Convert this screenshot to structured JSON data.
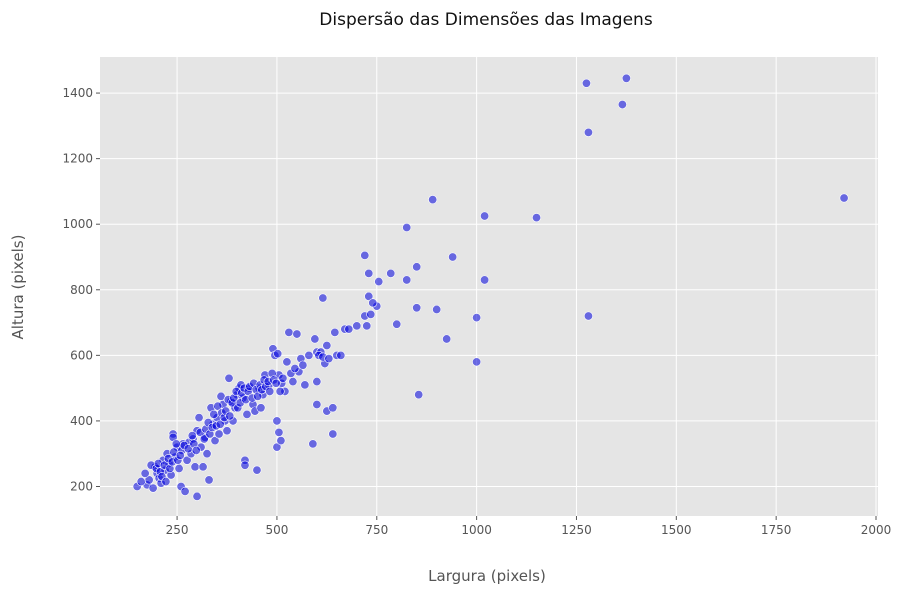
{
  "chart_data": {
    "type": "scatter",
    "title": "Dispersão das Dimensões das Imagens",
    "xlabel": "Largura (pixels)",
    "ylabel": "Altura (pixels)",
    "xlim": [
      57,
      2005
    ],
    "ylim": [
      110,
      1510
    ],
    "xticks": [
      250,
      500,
      750,
      1000,
      1250,
      1500,
      1750,
      2000
    ],
    "yticks": [
      200,
      400,
      600,
      800,
      1000,
      1200,
      1400
    ],
    "grid": true,
    "point_color": "#0000dd",
    "background_color": "#e5e5e5",
    "series": [
      {
        "points": [
          [
            150,
            200
          ],
          [
            175,
            205
          ],
          [
            180,
            220
          ],
          [
            190,
            195
          ],
          [
            195,
            260
          ],
          [
            200,
            240
          ],
          [
            205,
            225
          ],
          [
            210,
            210
          ],
          [
            215,
            280
          ],
          [
            220,
            250
          ],
          [
            225,
            300
          ],
          [
            230,
            270
          ],
          [
            235,
            235
          ],
          [
            240,
            360
          ],
          [
            240,
            350
          ],
          [
            245,
            290
          ],
          [
            250,
            320
          ],
          [
            255,
            255
          ],
          [
            260,
            200
          ],
          [
            262,
            310
          ],
          [
            265,
            330
          ],
          [
            270,
            185
          ],
          [
            275,
            280
          ],
          [
            280,
            335
          ],
          [
            285,
            300
          ],
          [
            290,
            345
          ],
          [
            295,
            260
          ],
          [
            300,
            170
          ],
          [
            300,
            370
          ],
          [
            305,
            410
          ],
          [
            310,
            320
          ],
          [
            315,
            260
          ],
          [
            320,
            350
          ],
          [
            325,
            300
          ],
          [
            330,
            220
          ],
          [
            335,
            440
          ],
          [
            340,
            390
          ],
          [
            345,
            340
          ],
          [
            350,
            410
          ],
          [
            355,
            360
          ],
          [
            360,
            475
          ],
          [
            365,
            450
          ],
          [
            370,
            400
          ],
          [
            375,
            370
          ],
          [
            380,
            530
          ],
          [
            385,
            460
          ],
          [
            390,
            400
          ],
          [
            395,
            440
          ],
          [
            400,
            480
          ],
          [
            405,
            500
          ],
          [
            410,
            510
          ],
          [
            415,
            470
          ],
          [
            420,
            280
          ],
          [
            420,
            265
          ],
          [
            425,
            420
          ],
          [
            430,
            500
          ],
          [
            440,
            450
          ],
          [
            445,
            430
          ],
          [
            450,
            250
          ],
          [
            455,
            500
          ],
          [
            460,
            440
          ],
          [
            465,
            480
          ],
          [
            470,
            540
          ],
          [
            480,
            510
          ],
          [
            490,
            620
          ],
          [
            495,
            600
          ],
          [
            500,
            400
          ],
          [
            500,
            320
          ],
          [
            505,
            540
          ],
          [
            505,
            365
          ],
          [
            510,
            340
          ],
          [
            512,
            515
          ],
          [
            520,
            490
          ],
          [
            525,
            580
          ],
          [
            530,
            670
          ],
          [
            540,
            520
          ],
          [
            550,
            665
          ],
          [
            555,
            550
          ],
          [
            560,
            590
          ],
          [
            570,
            510
          ],
          [
            590,
            330
          ],
          [
            595,
            650
          ],
          [
            600,
            610
          ],
          [
            600,
            520
          ],
          [
            600,
            450
          ],
          [
            610,
            610
          ],
          [
            615,
            775
          ],
          [
            620,
            575
          ],
          [
            625,
            630
          ],
          [
            625,
            430
          ],
          [
            640,
            440
          ],
          [
            640,
            360
          ],
          [
            645,
            670
          ],
          [
            650,
            600
          ],
          [
            670,
            680
          ],
          [
            680,
            680
          ],
          [
            720,
            720
          ],
          [
            720,
            905
          ],
          [
            725,
            690
          ],
          [
            730,
            780
          ],
          [
            730,
            850
          ],
          [
            735,
            725
          ],
          [
            750,
            750
          ],
          [
            755,
            825
          ],
          [
            785,
            850
          ],
          [
            800,
            695
          ],
          [
            825,
            990
          ],
          [
            825,
            830
          ],
          [
            850,
            870
          ],
          [
            850,
            745
          ],
          [
            855,
            480
          ],
          [
            890,
            1075
          ],
          [
            900,
            740
          ],
          [
            925,
            650
          ],
          [
            940,
            900
          ],
          [
            1000,
            715
          ],
          [
            1000,
            580
          ],
          [
            1020,
            1025
          ],
          [
            1020,
            830
          ],
          [
            1150,
            1020
          ],
          [
            1275,
            1430
          ],
          [
            1280,
            1280
          ],
          [
            1280,
            720
          ],
          [
            1365,
            1365
          ],
          [
            1375,
            1445
          ],
          [
            1920,
            1080
          ],
          [
            160,
            215
          ],
          [
            170,
            240
          ],
          [
            185,
            265
          ],
          [
            198,
            255
          ],
          [
            203,
            270
          ],
          [
            208,
            245
          ],
          [
            212,
            230
          ],
          [
            218,
            265
          ],
          [
            222,
            215
          ],
          [
            228,
            285
          ],
          [
            232,
            255
          ],
          [
            238,
            275
          ],
          [
            242,
            305
          ],
          [
            248,
            330
          ],
          [
            252,
            280
          ],
          [
            258,
            295
          ],
          [
            268,
            325
          ],
          [
            278,
            315
          ],
          [
            288,
            355
          ],
          [
            292,
            330
          ],
          [
            298,
            310
          ],
          [
            308,
            365
          ],
          [
            318,
            345
          ],
          [
            322,
            375
          ],
          [
            328,
            395
          ],
          [
            332,
            360
          ],
          [
            338,
            380
          ],
          [
            342,
            420
          ],
          [
            348,
            385
          ],
          [
            352,
            445
          ],
          [
            358,
            390
          ],
          [
            362,
            425
          ],
          [
            368,
            410
          ],
          [
            372,
            430
          ],
          [
            378,
            465
          ],
          [
            382,
            415
          ],
          [
            388,
            455
          ],
          [
            392,
            470
          ],
          [
            398,
            490
          ],
          [
            402,
            440
          ],
          [
            408,
            455
          ],
          [
            412,
            485
          ],
          [
            418,
            500
          ],
          [
            422,
            465
          ],
          [
            428,
            490
          ],
          [
            432,
            505
          ],
          [
            438,
            470
          ],
          [
            442,
            515
          ],
          [
            448,
            495
          ],
          [
            452,
            475
          ],
          [
            458,
            510
          ],
          [
            462,
            495
          ],
          [
            468,
            525
          ],
          [
            472,
            505
          ],
          [
            478,
            520
          ],
          [
            482,
            490
          ],
          [
            488,
            545
          ],
          [
            492,
            525
          ],
          [
            498,
            515
          ],
          [
            502,
            605
          ],
          [
            508,
            490
          ],
          [
            515,
            530
          ],
          [
            535,
            545
          ],
          [
            545,
            560
          ],
          [
            565,
            570
          ],
          [
            580,
            600
          ],
          [
            605,
            600
          ],
          [
            615,
            595
          ],
          [
            630,
            590
          ],
          [
            660,
            600
          ],
          [
            700,
            690
          ],
          [
            740,
            760
          ]
        ]
      }
    ]
  }
}
